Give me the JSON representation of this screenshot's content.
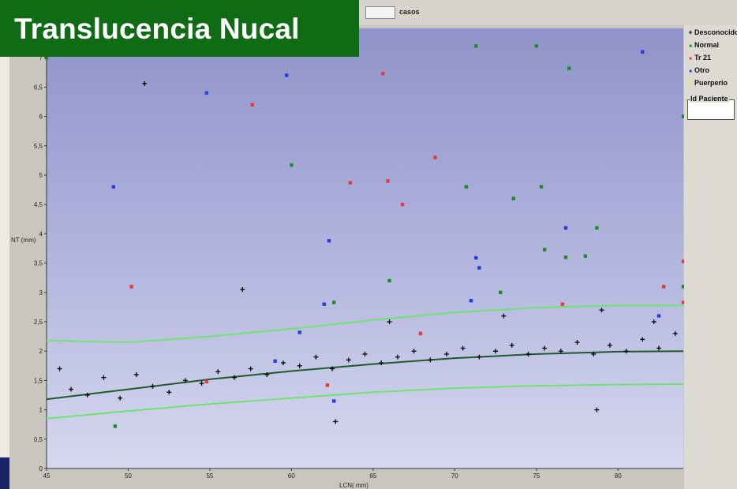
{
  "title": "Translucencia Nucal",
  "toolbar": {
    "cases_label": "casos"
  },
  "legend": {
    "items": [
      {
        "label": "Desconocido",
        "symbol": "+",
        "color": "#000000"
      },
      {
        "label": "Normal",
        "symbol": "■",
        "color": "#1e8a2a"
      },
      {
        "label": "Tr 21",
        "symbol": "■",
        "color": "#e23b3b"
      },
      {
        "label": "Otro",
        "symbol": "■",
        "color": "#2a3ae0"
      },
      {
        "label": "Puerperio",
        "symbol": "■",
        "color": "#e8e86a"
      }
    ],
    "patient_label": "Id Paciente"
  },
  "chart_data": {
    "type": "scatter",
    "xlabel": "LCN( mm)",
    "ylabel": "NT (mm)",
    "xlim": [
      45,
      84
    ],
    "ylim": [
      0,
      7.5
    ],
    "xticks": [
      45,
      50,
      55,
      60,
      65,
      70,
      75,
      80
    ],
    "xtick_labels": [
      "45",
      "50",
      "55",
      "60",
      "65",
      "70",
      "75",
      "80"
    ],
    "yticks": [
      0,
      0.5,
      1,
      1.5,
      2,
      2.5,
      3,
      3.5,
      4,
      4.5,
      5,
      5.5,
      6,
      6.5,
      7
    ],
    "ytick_labels": [
      "0",
      "0,5",
      "1",
      "1,5",
      "2",
      "2,5",
      "3",
      "3,5",
      "4",
      "4,5",
      "5",
      "5,5",
      "6",
      "6,5",
      "7"
    ],
    "grid": false,
    "legend_position": "right",
    "curves": [
      {
        "role": "upper-percentile",
        "color": "#6fe36f",
        "x": [
          45,
          50,
          55,
          60,
          65,
          70,
          75,
          80,
          84
        ],
        "y": [
          2.18,
          2.15,
          2.25,
          2.38,
          2.53,
          2.66,
          2.74,
          2.78,
          2.78
        ]
      },
      {
        "role": "median",
        "color": "#1f5a2a",
        "x": [
          45,
          50,
          55,
          60,
          65,
          70,
          75,
          80,
          84
        ],
        "y": [
          1.18,
          1.35,
          1.52,
          1.66,
          1.78,
          1.88,
          1.95,
          1.99,
          2.0
        ]
      },
      {
        "role": "lower-percentile",
        "color": "#6fe36f",
        "x": [
          45,
          50,
          55,
          60,
          65,
          70,
          75,
          80,
          84
        ],
        "y": [
          0.85,
          0.98,
          1.1,
          1.2,
          1.3,
          1.37,
          1.41,
          1.43,
          1.44
        ]
      }
    ],
    "series": [
      {
        "name": "Desconocido",
        "marker": "+",
        "color": "#000000",
        "points": [
          [
            51,
            6.56
          ],
          [
            57,
            3.05
          ],
          [
            78.7,
            1.0
          ],
          [
            62.7,
            0.8
          ],
          [
            45.8,
            1.7
          ],
          [
            46.5,
            1.35
          ],
          [
            47.5,
            1.25
          ],
          [
            48.5,
            1.55
          ],
          [
            49.5,
            1.2
          ],
          [
            50.5,
            1.6
          ],
          [
            51.5,
            1.4
          ],
          [
            52.5,
            1.3
          ],
          [
            53.5,
            1.5
          ],
          [
            54.5,
            1.45
          ],
          [
            55.5,
            1.65
          ],
          [
            56.5,
            1.55
          ],
          [
            57.5,
            1.7
          ],
          [
            58.5,
            1.6
          ],
          [
            59.5,
            1.8
          ],
          [
            60.5,
            1.75
          ],
          [
            61.5,
            1.9
          ],
          [
            62.5,
            1.7
          ],
          [
            63.5,
            1.85
          ],
          [
            64.5,
            1.95
          ],
          [
            65.5,
            1.8
          ],
          [
            66.5,
            1.9
          ],
          [
            67.5,
            2.0
          ],
          [
            68.5,
            1.85
          ],
          [
            69.5,
            1.95
          ],
          [
            70.5,
            2.05
          ],
          [
            71.5,
            1.9
          ],
          [
            72.5,
            2.0
          ],
          [
            73.5,
            2.1
          ],
          [
            74.5,
            1.95
          ],
          [
            75.5,
            2.05
          ],
          [
            76.5,
            2.0
          ],
          [
            77.5,
            2.15
          ],
          [
            78.5,
            1.95
          ],
          [
            79.5,
            2.1
          ],
          [
            80.5,
            2.0
          ],
          [
            81.5,
            2.2
          ],
          [
            82.5,
            2.05
          ],
          [
            83.5,
            2.3
          ],
          [
            66,
            2.5
          ],
          [
            73,
            2.6
          ],
          [
            79,
            2.7
          ],
          [
            82.2,
            2.5
          ]
        ]
      },
      {
        "name": "Normal",
        "marker": "square",
        "color": "#1e8a2a",
        "points": [
          [
            45,
            7.0
          ],
          [
            60,
            5.17
          ],
          [
            71.3,
            7.2
          ],
          [
            75,
            7.2
          ],
          [
            77,
            6.82
          ],
          [
            70.7,
            4.8
          ],
          [
            73.6,
            4.6
          ],
          [
            75.3,
            4.8
          ],
          [
            78.7,
            4.1
          ],
          [
            75.5,
            3.73
          ],
          [
            76.8,
            3.6
          ],
          [
            78,
            3.62
          ],
          [
            66,
            3.2
          ],
          [
            72.8,
            3.0
          ],
          [
            84,
            6.0
          ],
          [
            84,
            3.1
          ],
          [
            49.2,
            0.72
          ],
          [
            62.6,
            2.83
          ]
        ]
      },
      {
        "name": "Tr 21",
        "marker": "square",
        "color": "#e23b3b",
        "points": [
          [
            57.6,
            6.2
          ],
          [
            65.6,
            6.73
          ],
          [
            63.6,
            4.87
          ],
          [
            65.9,
            4.9
          ],
          [
            66.8,
            4.5
          ],
          [
            68.8,
            5.3
          ],
          [
            50.2,
            3.1
          ],
          [
            54.8,
            1.48
          ],
          [
            62.2,
            1.42
          ],
          [
            76.6,
            2.8
          ],
          [
            82.8,
            3.1
          ],
          [
            84,
            3.53
          ],
          [
            84,
            2.83
          ],
          [
            67.9,
            2.3
          ]
        ]
      },
      {
        "name": "Otro",
        "marker": "square",
        "color": "#2a3ae0",
        "points": [
          [
            49.1,
            4.8
          ],
          [
            54.8,
            6.4
          ],
          [
            59.7,
            6.7
          ],
          [
            81.5,
            7.1
          ],
          [
            62.3,
            3.88
          ],
          [
            71.3,
            3.59
          ],
          [
            71.5,
            3.42
          ],
          [
            76.8,
            4.1
          ],
          [
            71,
            2.86
          ],
          [
            62,
            2.8
          ],
          [
            60.5,
            2.32
          ],
          [
            59,
            1.83
          ],
          [
            62.6,
            1.15
          ],
          [
            82.5,
            2.6
          ]
        ]
      }
    ]
  }
}
